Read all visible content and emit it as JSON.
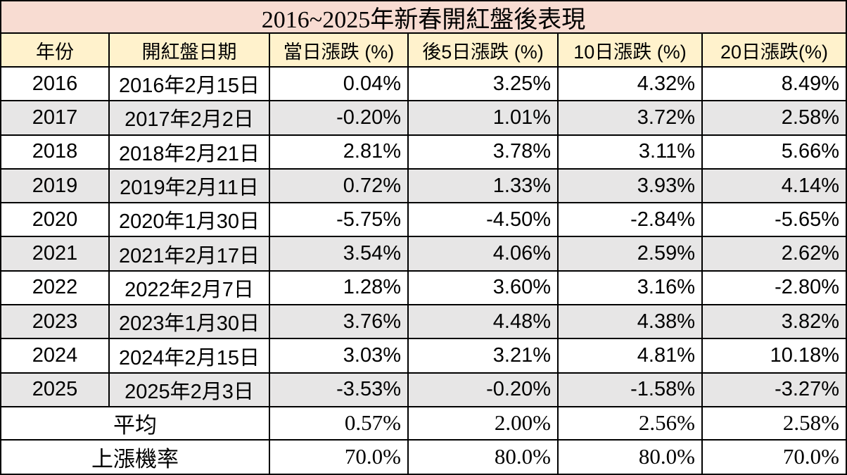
{
  "title": "2016~2025年新春開紅盤後表現",
  "colors": {
    "title_bg": "#F8DCD2",
    "header_bg": "#FFF2CC",
    "row_bg": "#FFFFFF",
    "row_alt_bg": "#E7E6E6",
    "border": "#000000",
    "text": "#000000"
  },
  "table": {
    "columns": [
      "年份",
      "開紅盤日期",
      "當日漲跌 (%)",
      "後5日漲跌 (%)",
      "10日漲跌 (%)",
      "20日漲跌(%)"
    ],
    "rows": [
      [
        "2016",
        "2016年2月15日",
        "0.04%",
        "3.25%",
        "4.32%",
        "8.49%"
      ],
      [
        "2017",
        "2017年2月2日",
        "-0.20%",
        "1.01%",
        "3.72%",
        "2.58%"
      ],
      [
        "2018",
        "2018年2月21日",
        "2.81%",
        "3.78%",
        "3.11%",
        "5.66%"
      ],
      [
        "2019",
        "2019年2月11日",
        "0.72%",
        "1.33%",
        "3.93%",
        "4.14%"
      ],
      [
        "2020",
        "2020年1月30日",
        "-5.75%",
        "-4.50%",
        "-2.84%",
        "-5.65%"
      ],
      [
        "2021",
        "2021年2月17日",
        "3.54%",
        "4.06%",
        "2.59%",
        "2.62%"
      ],
      [
        "2022",
        "2022年2月7日",
        "1.28%",
        "3.60%",
        "3.16%",
        "-2.80%"
      ],
      [
        "2023",
        "2023年1月30日",
        "3.76%",
        "4.48%",
        "4.38%",
        "3.82%"
      ],
      [
        "2024",
        "2024年2月15日",
        "3.03%",
        "3.21%",
        "4.81%",
        "10.18%"
      ],
      [
        "2025",
        "2025年2月3日",
        "-3.53%",
        "-0.20%",
        "-1.58%",
        "-3.27%"
      ]
    ],
    "summary_rows": [
      [
        "平均",
        "0.57%",
        "2.00%",
        "2.56%",
        "2.58%"
      ],
      [
        "上漲機率",
        "70.0%",
        "80.0%",
        "80.0%",
        "70.0%"
      ]
    ]
  },
  "chart_data": {
    "type": "table",
    "title": "2016~2025年新春開紅盤後表現",
    "columns": [
      "年份",
      "開紅盤日期",
      "當日漲跌 (%)",
      "後5日漲跌 (%)",
      "10日漲跌 (%)",
      "20日漲跌(%)"
    ],
    "years": [
      2016,
      2017,
      2018,
      2019,
      2020,
      2021,
      2022,
      2023,
      2024,
      2025
    ],
    "dates": [
      "2016年2月15日",
      "2017年2月2日",
      "2018年2月21日",
      "2019年2月11日",
      "2020年1月30日",
      "2021年2月17日",
      "2022年2月7日",
      "2023年1月30日",
      "2024年2月15日",
      "2025年2月3日"
    ],
    "series": [
      {
        "name": "當日漲跌 (%)",
        "values": [
          0.04,
          -0.2,
          2.81,
          0.72,
          -5.75,
          3.54,
          1.28,
          3.76,
          3.03,
          -3.53
        ],
        "average_pct": 0.57,
        "up_probability_pct": 70.0
      },
      {
        "name": "後5日漲跌 (%)",
        "values": [
          3.25,
          1.01,
          3.78,
          1.33,
          -4.5,
          4.06,
          3.6,
          4.48,
          3.21,
          -0.2
        ],
        "average_pct": 2.0,
        "up_probability_pct": 80.0
      },
      {
        "name": "10日漲跌 (%)",
        "values": [
          4.32,
          3.72,
          3.11,
          3.93,
          -2.84,
          2.59,
          3.16,
          4.38,
          4.81,
          -1.58
        ],
        "average_pct": 2.56,
        "up_probability_pct": 80.0
      },
      {
        "name": "20日漲跌(%)",
        "values": [
          8.49,
          2.58,
          5.66,
          4.14,
          -5.65,
          2.62,
          -2.8,
          3.82,
          10.18,
          -3.27
        ],
        "average_pct": 2.58,
        "up_probability_pct": 70.0
      }
    ],
    "summary_labels": [
      "平均",
      "上漲機率"
    ]
  }
}
